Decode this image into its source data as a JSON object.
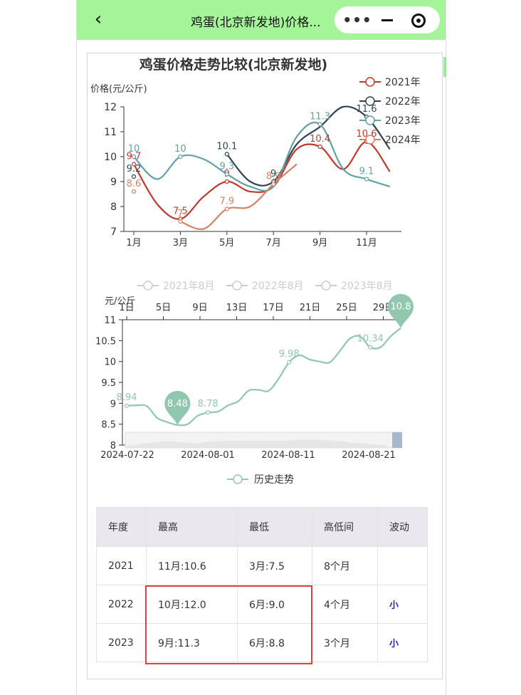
{
  "topbar": {
    "title": "鸡蛋(北京新发地)价格...",
    "back_icon": "back-arrow-icon",
    "menu_icon": "more-dots-icon",
    "minimize_icon": "minimize-icon",
    "close_icon": "target-circle-icon",
    "background": "#a6f49a"
  },
  "chart_data": [
    {
      "type": "line",
      "title": "鸡蛋价格走势比较(北京新发地)",
      "ylabel": "价格(元/公斤)",
      "xlabel": "",
      "x_ticks": [
        "1月",
        "3月",
        "5月",
        "7月",
        "9月",
        "11月"
      ],
      "ylim": [
        7,
        12
      ],
      "y_ticks": [
        "7",
        "8",
        "9",
        "10",
        "11",
        "12"
      ],
      "legend_position": "top-right",
      "series": [
        {
          "name": "2021年",
          "color": "#c0392b",
          "values": [
            9.7,
            8.1,
            7.5,
            8.4,
            9.0,
            8.6,
            8.8,
            10.3,
            10.4,
            9.5,
            10.6,
            9.4
          ],
          "labels": [
            {
              "month": 1,
              "text": "9.7"
            },
            {
              "month": 3,
              "text": "7.5"
            },
            {
              "month": 5,
              "text": "9"
            },
            {
              "month": 9,
              "text": "10.4"
            },
            {
              "month": 11,
              "text": "10.6"
            }
          ]
        },
        {
          "name": "2022年",
          "color": "#2f4554",
          "values": [
            9.2,
            null,
            null,
            null,
            10.1,
            9.0,
            9.0,
            10.5,
            11.2,
            12.0,
            11.6,
            10.3
          ],
          "labels": [
            {
              "month": 1,
              "text": "9.2"
            },
            {
              "month": 5,
              "text": "10.1"
            },
            {
              "month": 7,
              "text": "9"
            },
            {
              "month": 11,
              "text": "11.6"
            }
          ]
        },
        {
          "name": "2023年",
          "color": "#61a0a8",
          "values": [
            10.0,
            9.1,
            10.0,
            9.9,
            9.3,
            8.8,
            8.8,
            10.8,
            11.3,
            9.5,
            9.1,
            8.8
          ],
          "labels": [
            {
              "month": 1,
              "text": "10"
            },
            {
              "month": 3,
              "text": "10"
            },
            {
              "month": 5,
              "text": "9.3"
            },
            {
              "month": 9,
              "text": "11.3"
            },
            {
              "month": 11,
              "text": "9.1"
            }
          ]
        },
        {
          "name": "2024年",
          "color": "#d48265",
          "values": [
            8.6,
            null,
            7.4,
            7.1,
            7.9,
            8.0,
            8.9,
            9.7,
            null,
            null,
            null,
            null
          ],
          "labels": [
            {
              "month": 1,
              "text": "8.6"
            },
            {
              "month": 3,
              "text": "7"
            },
            {
              "month": 5,
              "text": "7.9"
            },
            {
              "month": 7,
              "text": "8.9"
            }
          ]
        }
      ]
    },
    {
      "type": "line",
      "title": "",
      "ylabel": "元/公斤",
      "xlabel": "",
      "x_top_ticks": [
        "1日",
        "5日",
        "9日",
        "13日",
        "17日",
        "21日",
        "25日",
        "29日"
      ],
      "x_bottom_ticks": [
        "2024-07-22",
        "2024-08-01",
        "2024-08-11",
        "2024-08-21"
      ],
      "ylim": [
        8,
        11
      ],
      "y_ticks": [
        "8",
        "8.5",
        "9",
        "9.5",
        "10",
        "10.5",
        "11"
      ],
      "legend": [
        "2021年8月",
        "2022年8月",
        "2023年8月"
      ],
      "bottom_legend": "历史走势",
      "series": [
        {
          "name": "历史走势",
          "color": "#91c7ae",
          "values": [
            8.94,
            8.95,
            8.93,
            8.65,
            8.55,
            8.48,
            8.5,
            8.7,
            8.78,
            8.8,
            8.95,
            9.05,
            9.3,
            9.32,
            9.3,
            9.6,
            9.98,
            10.15,
            10.05,
            10.0,
            9.98,
            10.25,
            10.55,
            10.6,
            10.34,
            10.34,
            10.6,
            10.8
          ],
          "labels": [
            "8.94",
            "8.78",
            "9.98",
            "10.34"
          ],
          "markers": [
            "8.48",
            "10.8"
          ]
        }
      ]
    }
  ],
  "table": {
    "headers": [
      "年度",
      "最高",
      "最低",
      "高低间",
      "波动"
    ],
    "rows": [
      [
        "2021",
        "11月:10.6",
        "3月:7.5",
        "8个月",
        ""
      ],
      [
        "2022",
        "10月:12.0",
        "6月:9.0",
        "4个月",
        "小"
      ],
      [
        "2023",
        "9月:11.3",
        "6月:8.8",
        "3个月",
        "小"
      ]
    ]
  }
}
